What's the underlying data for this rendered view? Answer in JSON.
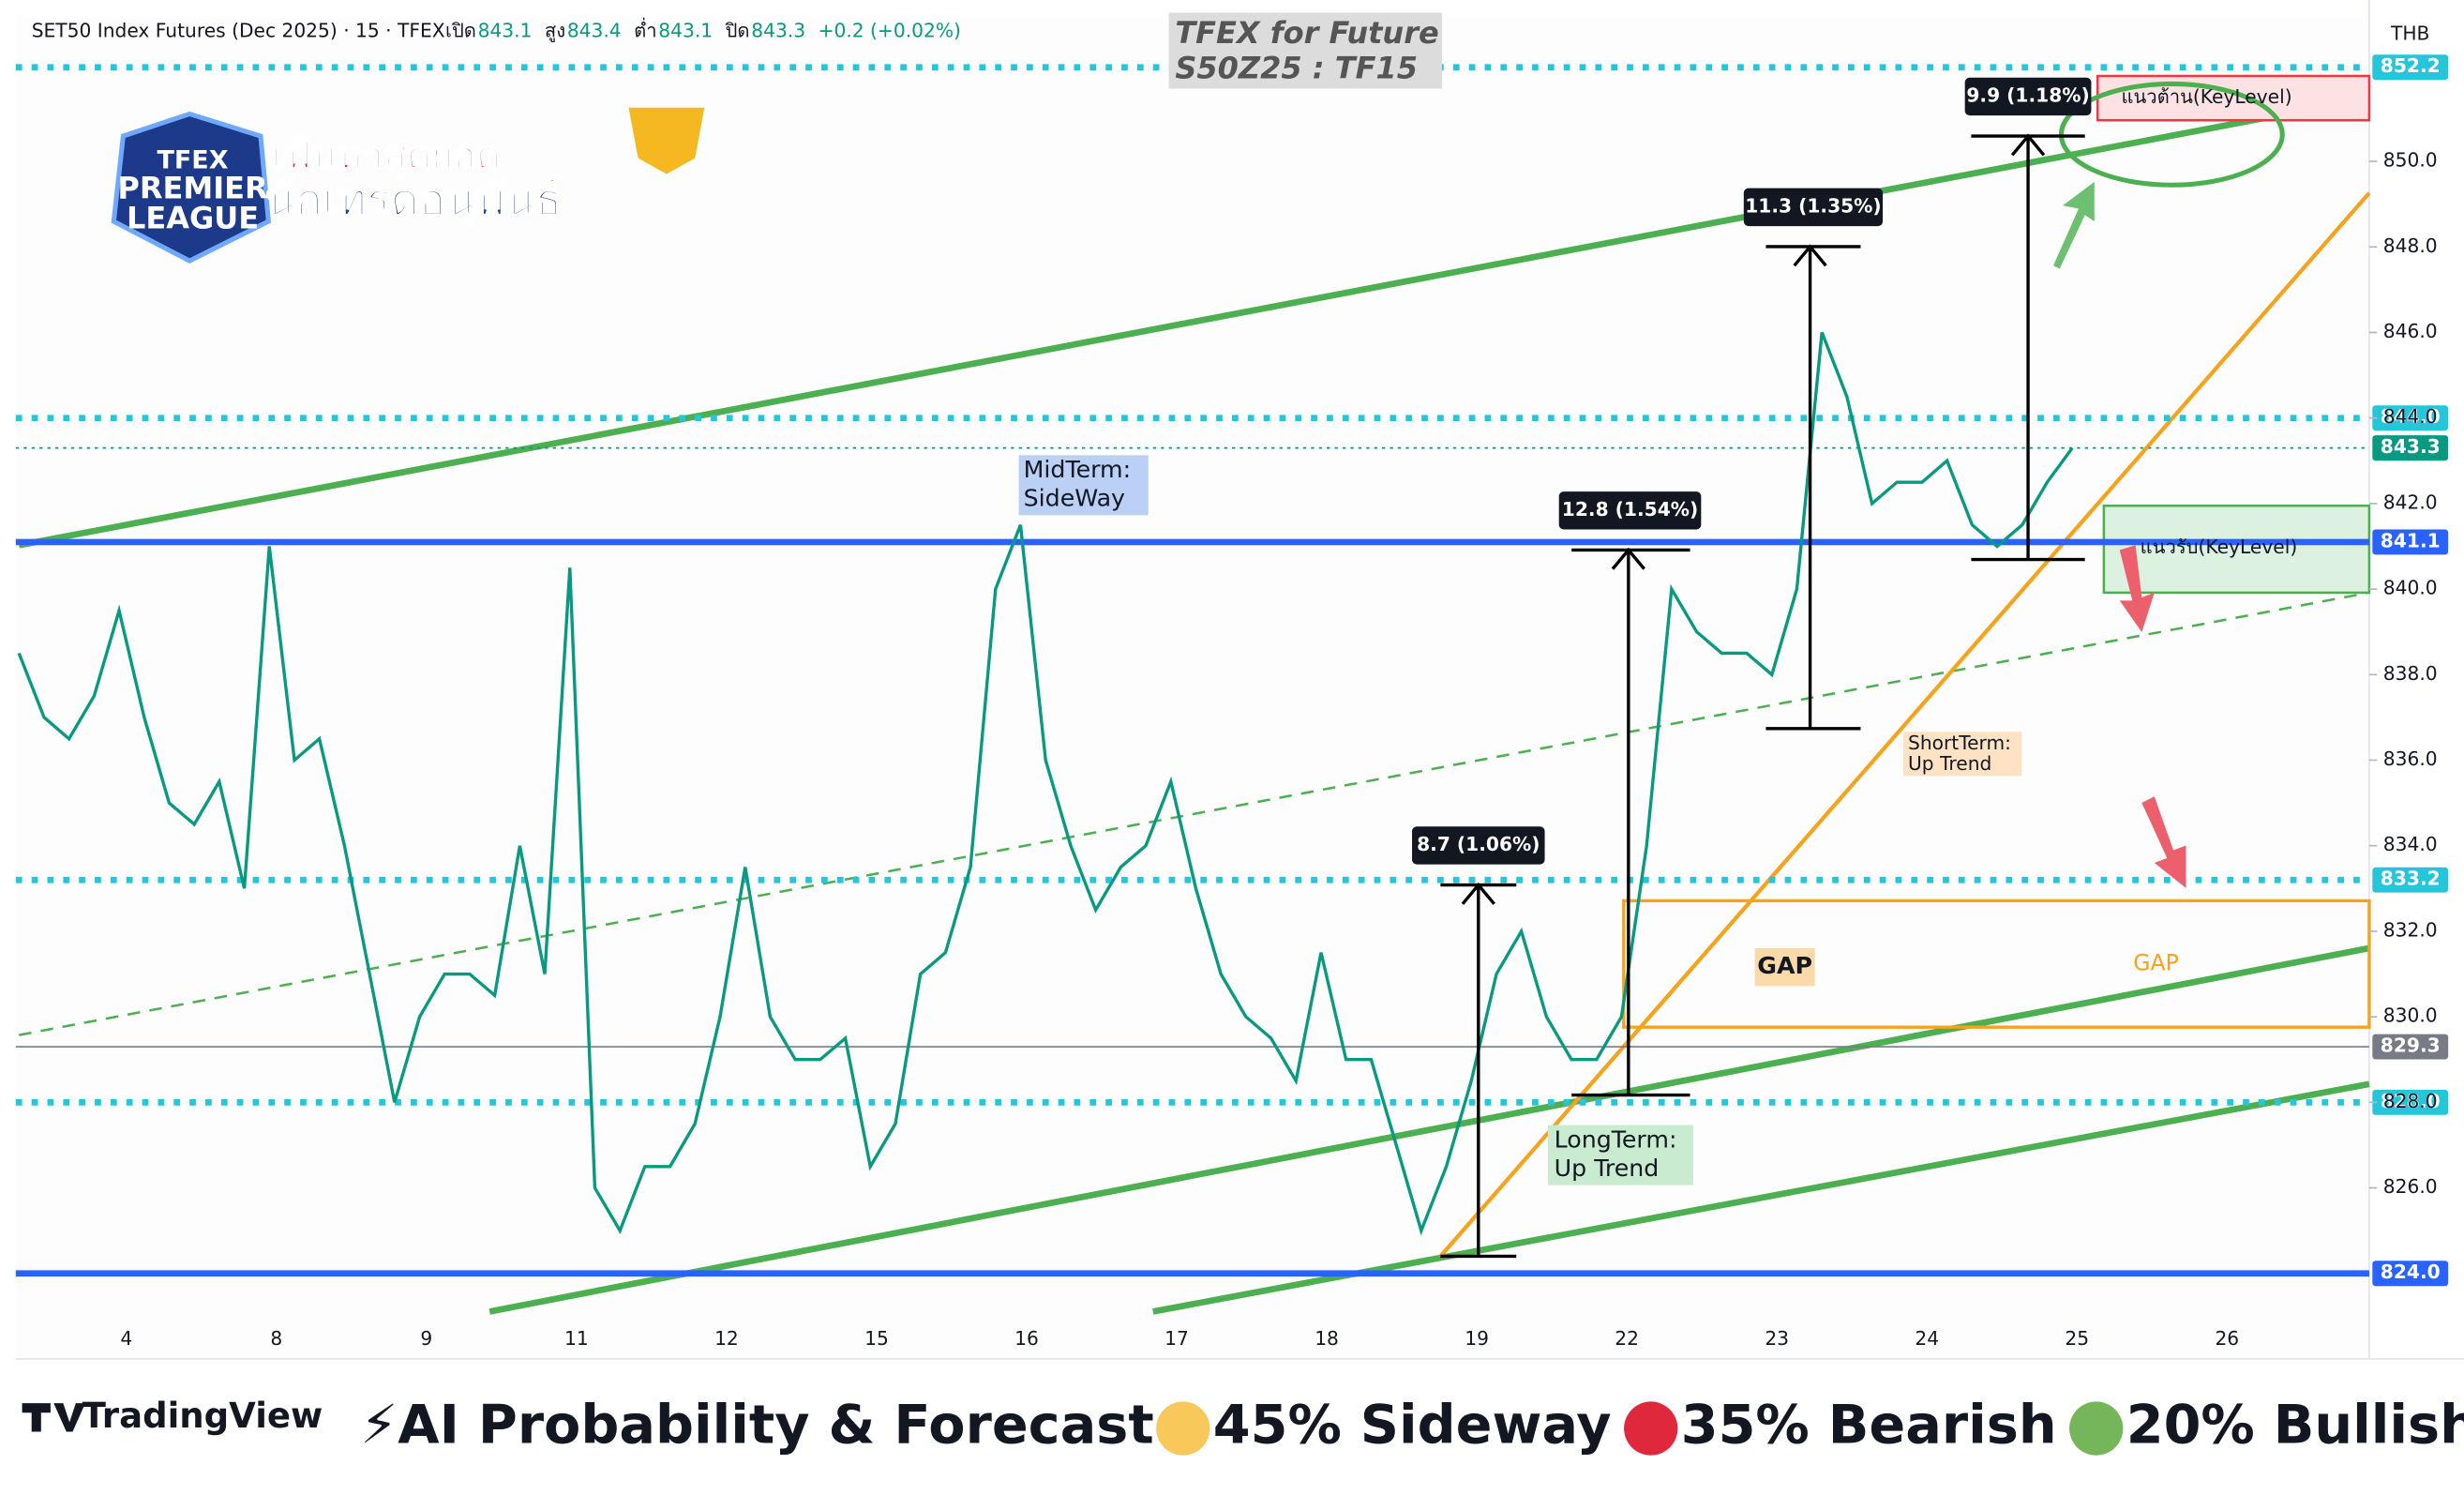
{
  "chart_data": {
    "type": "line",
    "title": "SET50 Index Futures (Dec 2025) · 15 · TFEX",
    "ohlc": [
      {
        "label": "เปิด",
        "value": "843.1"
      },
      {
        "label": "สูง",
        "value": "843.4"
      },
      {
        "label": "ต่ำ",
        "value": "843.1"
      },
      {
        "label": "ปิด",
        "value": "843.3"
      }
    ],
    "change": "+0.2 (+0.02%)",
    "watermark": [
      "TFEX for Future",
      "S50Z25 : TF15"
    ],
    "currency": "THB",
    "logo": {
      "top": "TFEX",
      "middle": "PREMIER",
      "bottom": "LEAGUE",
      "line1": "เฟ้นหาสุดยอด",
      "line2": "นักเทรดอนุพันธ์"
    },
    "categories": [
      "4",
      "8",
      "9",
      "11",
      "12",
      "15",
      "16",
      "17",
      "18",
      "19",
      "22",
      "23",
      "24",
      "25",
      "26"
    ],
    "ylim": [
      822,
      853.4
    ],
    "yticks": [
      {
        "value": 826,
        "label": "826.0"
      },
      {
        "value": 828,
        "label": "828.0"
      },
      {
        "value": 830,
        "label": "830.0"
      },
      {
        "value": 832,
        "label": "832.0"
      },
      {
        "value": 834,
        "label": "834.0"
      },
      {
        "value": 836,
        "label": "836.0"
      },
      {
        "value": 838,
        "label": "838.0"
      },
      {
        "value": 840,
        "label": "840.0"
      },
      {
        "value": 842,
        "label": "842.0"
      },
      {
        "value": 844,
        "label": "844.0"
      },
      {
        "value": 846,
        "label": "846.0"
      },
      {
        "value": 848,
        "label": "848.0"
      },
      {
        "value": 850,
        "label": "850.0"
      }
    ],
    "levels": [
      {
        "value": 852.2,
        "label": "852.2",
        "color": "#26c6da",
        "line": "dotted"
      },
      {
        "value": 844,
        "label": "844.0",
        "color": "#26c6da",
        "line": "dotted"
      },
      {
        "value": 843.3,
        "label": "843.3",
        "color": "#089981",
        "line": "thin"
      },
      {
        "value": 841.1,
        "label": "841.1",
        "color": "#2962ff",
        "line": "solid"
      },
      {
        "value": 833.2,
        "label": "833.2",
        "color": "#26c6da",
        "line": "dotted"
      },
      {
        "value": 829.3,
        "label": "829.3",
        "color": "#787b86",
        "line": "thin"
      },
      {
        "value": 828,
        "label": "828.0",
        "color": "#26c6da",
        "line": "dotted"
      },
      {
        "value": 824,
        "label": "824.0",
        "color": "#2962ff",
        "line": "solid"
      }
    ],
    "price": {
      "color": "#089981",
      "values": [
        838.5,
        837,
        836.5,
        837.5,
        839.5,
        837,
        835,
        834.5,
        835.5,
        833,
        841,
        836,
        836.5,
        834,
        831,
        828,
        830,
        831,
        831,
        830.5,
        834,
        831,
        840.5,
        826,
        825,
        826.5,
        826.5,
        827.5,
        830,
        833.5,
        830,
        829,
        829,
        829.5,
        826.5,
        827.5,
        831,
        831.5,
        833.5,
        840,
        841.5,
        836,
        834,
        832.5,
        833.5,
        834,
        835.5,
        833,
        831,
        830,
        829.5,
        828.5,
        831.5,
        829,
        829,
        827,
        825,
        826.5,
        828.5,
        831,
        832,
        830,
        829,
        829,
        830,
        834,
        840,
        839,
        838.5,
        838.5,
        838,
        840,
        846,
        844.5,
        842,
        842.5,
        842.5,
        843,
        841.5,
        841,
        841.5,
        842.5,
        843.3
      ]
    },
    "annotations": {
      "midterm": [
        "MidTerm:",
        "SideWay"
      ],
      "shortterm": [
        "ShortTerm:",
        "Up Trend"
      ],
      "longterm": [
        "LongTerm:",
        "Up Trend"
      ],
      "gap": [
        "GAP",
        "GAP"
      ],
      "resistance": "แนวต้าน(KeyLevel)",
      "support": "แนวรับ(KeyLevel)",
      "measures": [
        "8.7 (1.06%)",
        "12.8 (1.54%)",
        "11.3 (1.35%)",
        "9.9 (1.18%)"
      ]
    },
    "footer": {
      "brand": "TradingView",
      "forecast": "⚡AI Probability & Forecast :",
      "items": [
        {
          "label": "45% Sideway",
          "color": "#f8c95a"
        },
        {
          "label": "35% Bearish",
          "color": "#e0283c"
        },
        {
          "label": "20% Bullish",
          "color": "#76b65a"
        }
      ]
    }
  }
}
